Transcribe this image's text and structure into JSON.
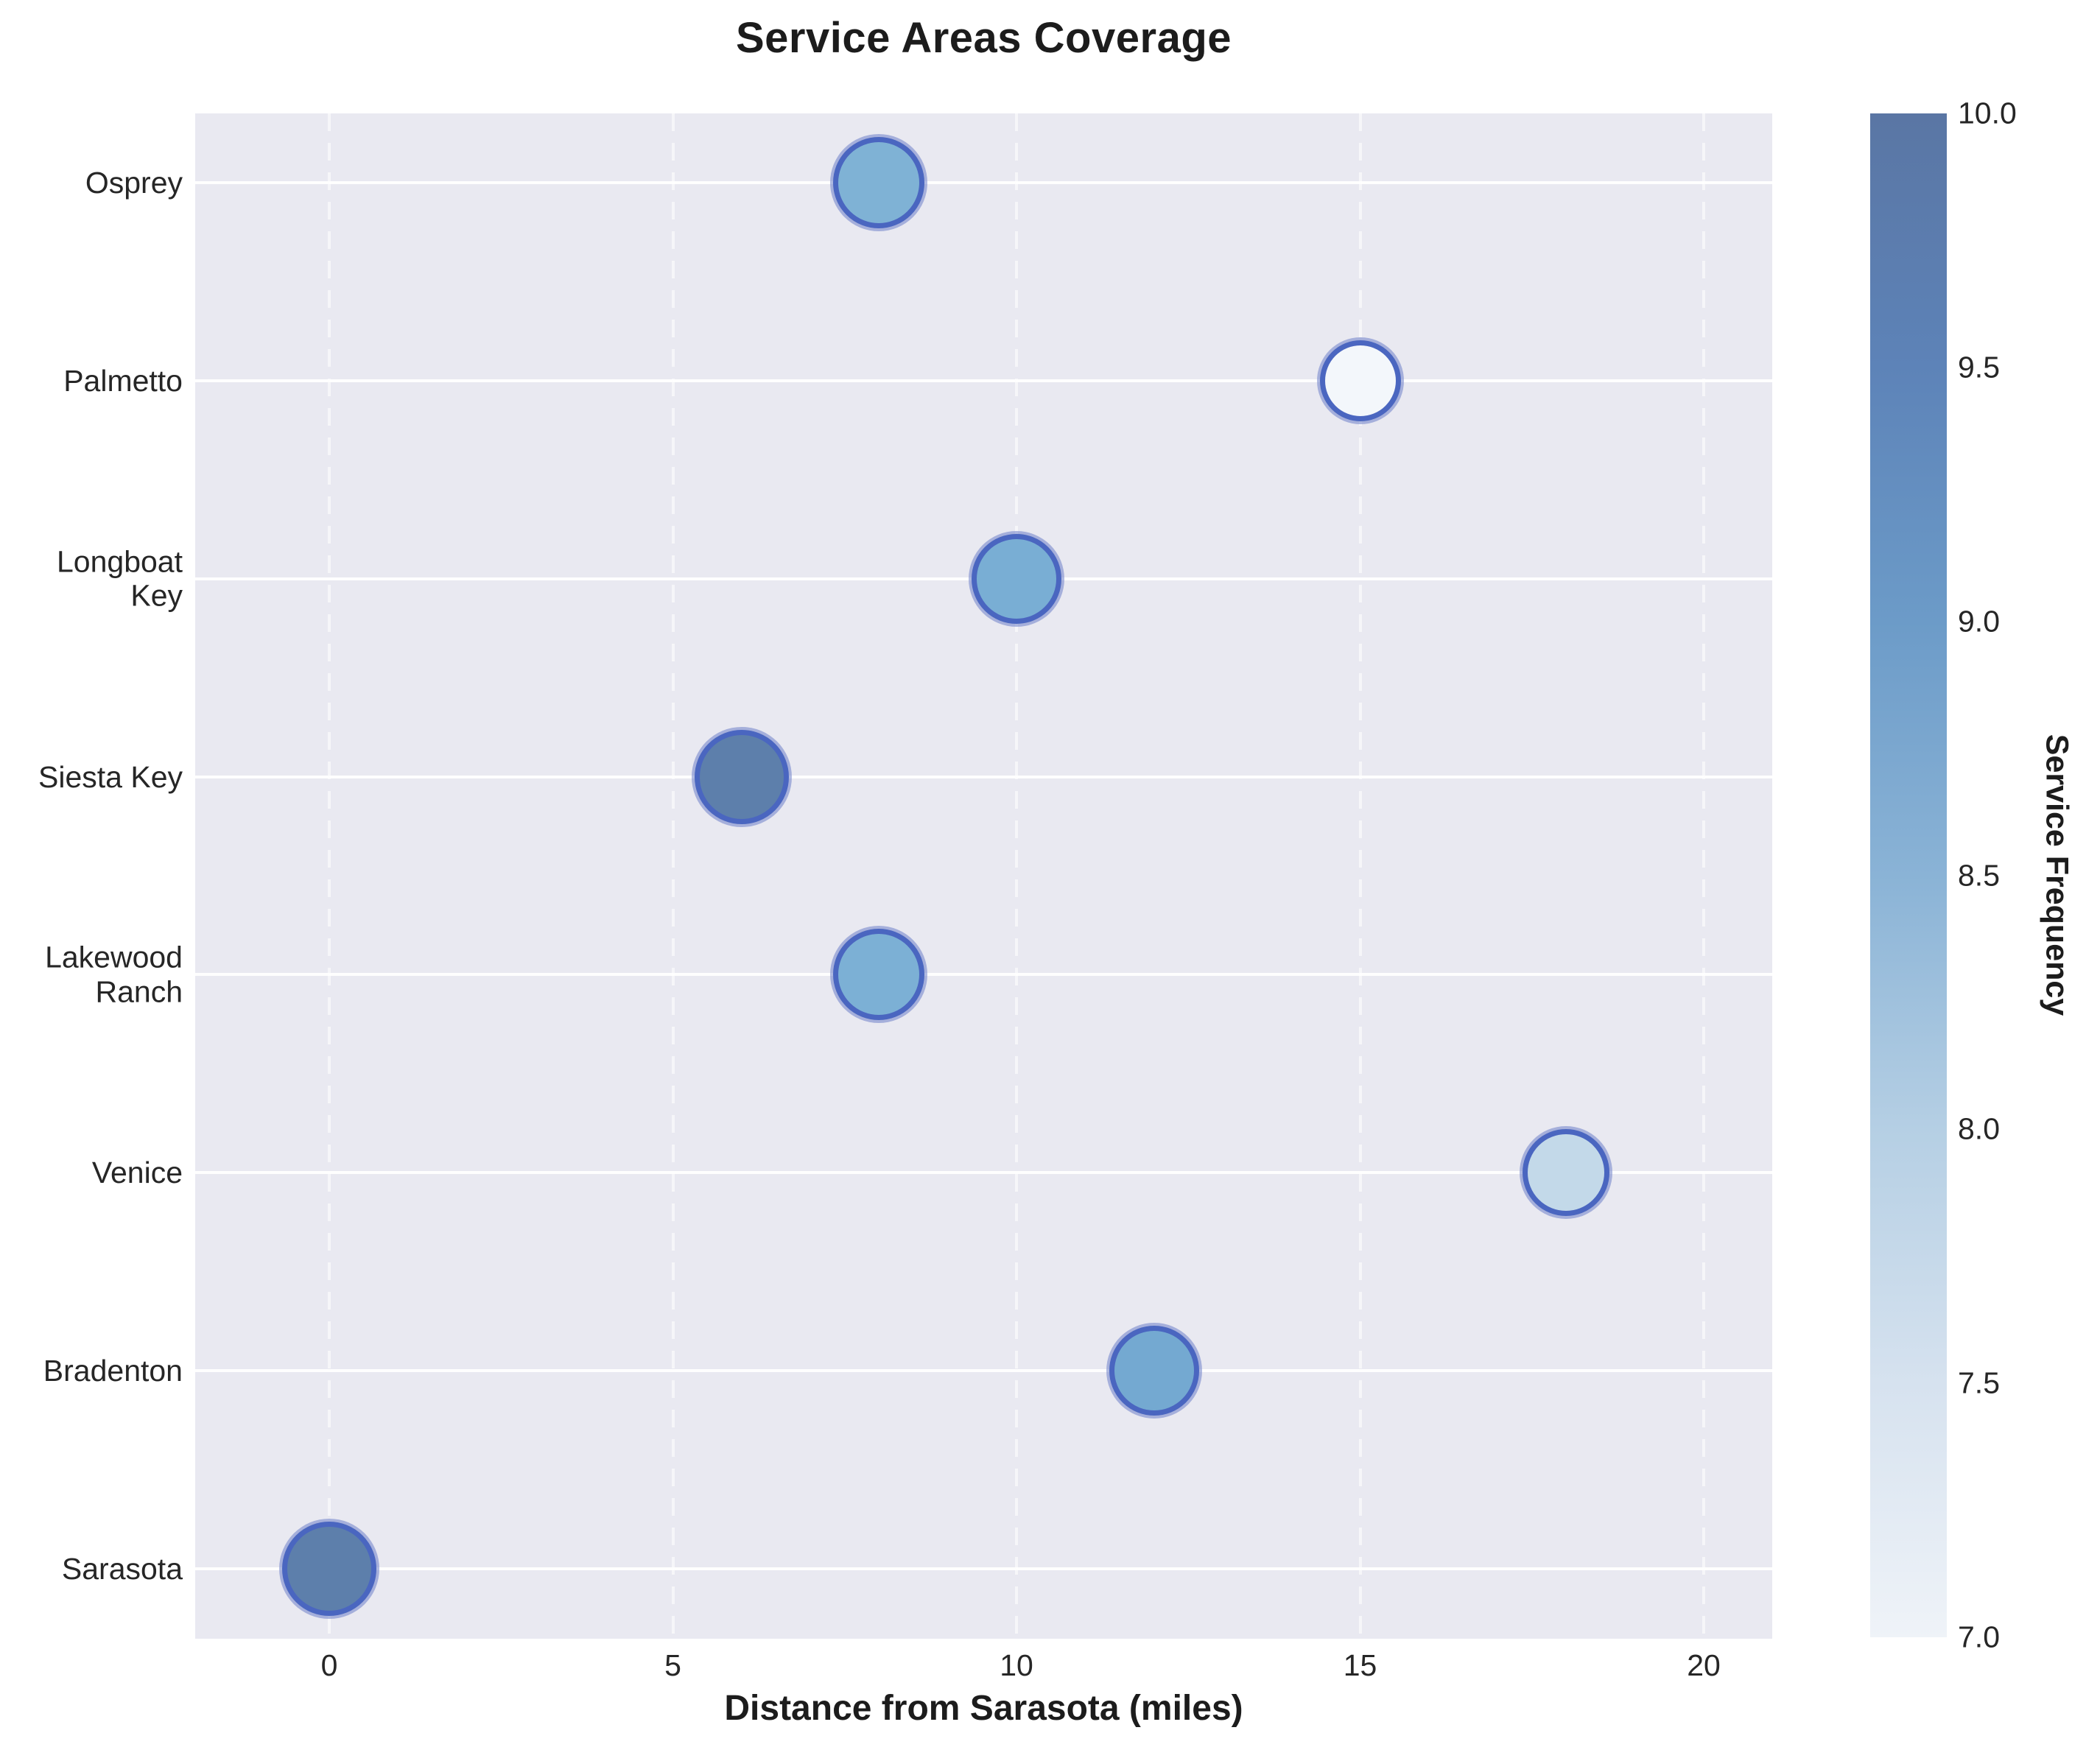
{
  "title": "Service Areas Coverage",
  "axes": {
    "x_label": "Distance from Sarasota (miles)",
    "x_ticks": [
      "0",
      "5",
      "10",
      "15",
      "20"
    ],
    "y_categories": [
      "Osprey",
      "Palmetto",
      "Longboat Key",
      "Siesta Key",
      "Lakewood Ranch",
      "Venice",
      "Bradenton",
      "Sarasota"
    ],
    "y_labels_wrapped": [
      [
        "Osprey"
      ],
      [
        "Palmetto"
      ],
      [
        "Longboat",
        "Key"
      ],
      [
        "Siesta Key"
      ],
      [
        "Lakewood",
        "Ranch"
      ],
      [
        "Venice"
      ],
      [
        "Bradenton"
      ],
      [
        "Sarasota"
      ]
    ]
  },
  "colorbar": {
    "label": "Service Frequency",
    "ticks": [
      "10.0",
      "9.5",
      "9.0",
      "8.5",
      "8.0",
      "7.5",
      "7.0"
    ],
    "min": 7.0,
    "max": 10.0,
    "gradient_stops": [
      "#5a76a4",
      "#5d83b8",
      "#6c9bc8",
      "#8ab3d6",
      "#b5cfe4",
      "#d6e2ef",
      "#eff3f8"
    ]
  },
  "chart_data": {
    "type": "scatter",
    "title": "Service Areas Coverage",
    "xlabel": "Distance from Sarasota (miles)",
    "ylabel": "",
    "x_tick_values": [
      0,
      5,
      10,
      15,
      20
    ],
    "x_range_miles": [
      -1.95,
      21.0
    ],
    "grid": true,
    "legend": "colorbar-right",
    "colorbar_label": "Service Frequency",
    "color_range": [
      7.0,
      10.0
    ],
    "points": [
      {
        "area": "Osprey",
        "distance_miles": 8,
        "service_frequency": 9.0,
        "fill": "#7fb2d5",
        "radius_px": 66
      },
      {
        "area": "Palmetto",
        "distance_miles": 15,
        "service_frequency": 7.0,
        "fill": "#f3f7fb",
        "radius_px": 59
      },
      {
        "area": "Longboat Key",
        "distance_miles": 10,
        "service_frequency": 8.9,
        "fill": "#79aed4",
        "radius_px": 65
      },
      {
        "area": "Siesta Key",
        "distance_miles": 6,
        "service_frequency": 10.0,
        "fill": "#5d7fab",
        "radius_px": 68
      },
      {
        "area": "Lakewood Ranch",
        "distance_miles": 8,
        "service_frequency": 8.9,
        "fill": "#7cb0d5",
        "radius_px": 66
      },
      {
        "area": "Venice",
        "distance_miles": 18,
        "service_frequency": 7.8,
        "fill": "#c3d9e9",
        "radius_px": 63
      },
      {
        "area": "Bradenton",
        "distance_miles": 12,
        "service_frequency": 9.0,
        "fill": "#74a9d1",
        "radius_px": 65
      },
      {
        "area": "Sarasota",
        "distance_miles": 0,
        "service_frequency": 10.0,
        "fill": "#5d7fab",
        "radius_px": 68
      }
    ]
  },
  "colors": {
    "figure_bg": "#ffffff",
    "plot_bg": "#e9e9f1",
    "bubble_edge": "#4a66c0",
    "bubble_edge_glow": "rgba(110,128,200,0.55)",
    "grid_horizontal": "rgba(255,255,255,0.92)",
    "grid_vertical": "rgba(255,255,255,0.6)",
    "text": "#262626"
  }
}
